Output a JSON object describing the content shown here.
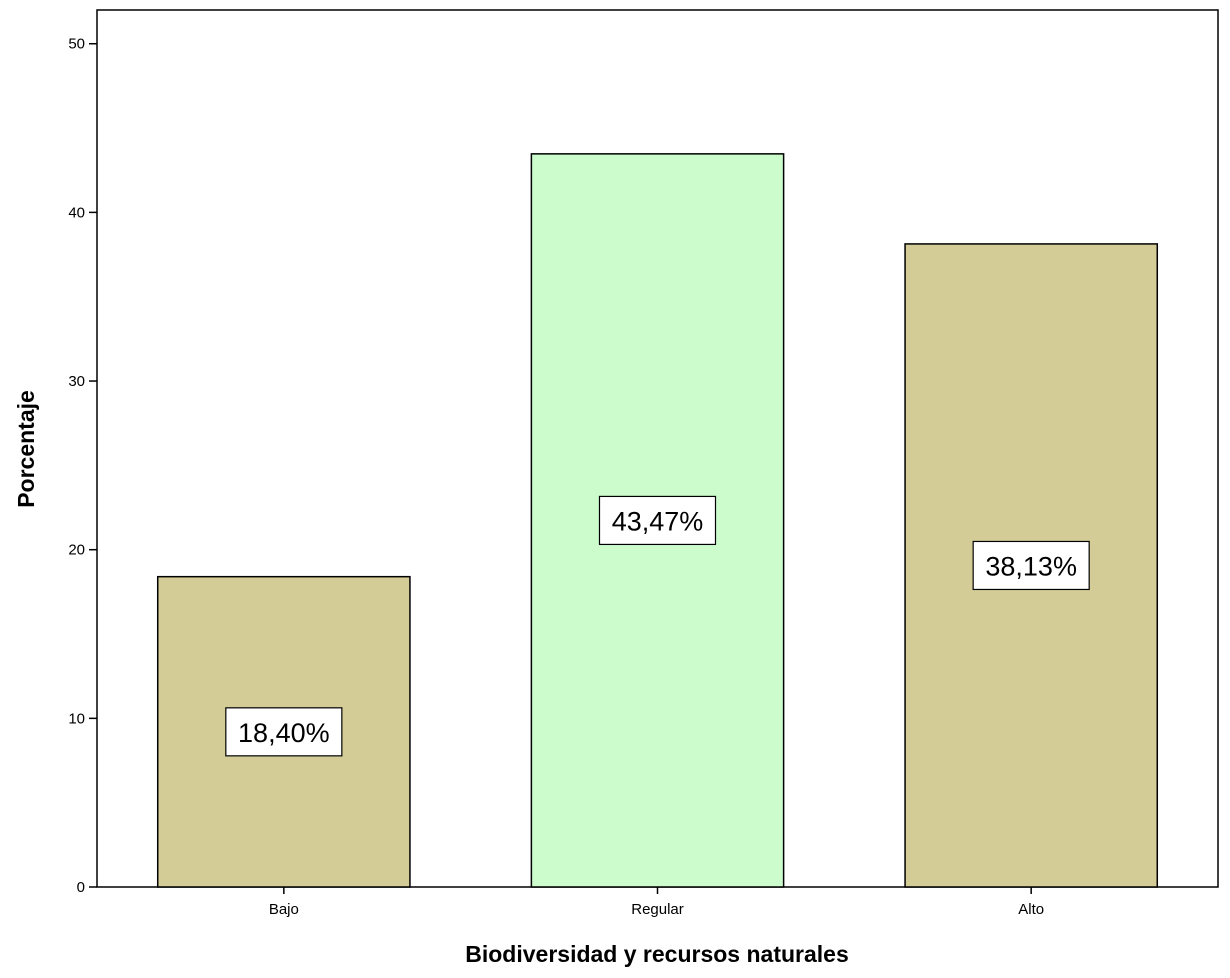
{
  "chart_data": {
    "type": "bar",
    "title": "",
    "xlabel": "Biodiversidad y recursos naturales",
    "ylabel": "Porcentaje",
    "categories": [
      "Bajo",
      "Regular",
      "Alto"
    ],
    "values": [
      18.4,
      43.47,
      38.13
    ],
    "data_labels": [
      "18,40%",
      "43,47%",
      "38,13%"
    ],
    "bar_colors": [
      "#d3cc97",
      "#ccfccc",
      "#d3cc97"
    ],
    "bar_outline_color": "#000000",
    "ylim": [
      0,
      52
    ],
    "yticks": [
      0,
      10,
      20,
      30,
      40,
      50
    ],
    "ytick_labels": [
      "0",
      "10",
      "20",
      "30",
      "40",
      "50"
    ],
    "grid": false,
    "legend": "none"
  }
}
